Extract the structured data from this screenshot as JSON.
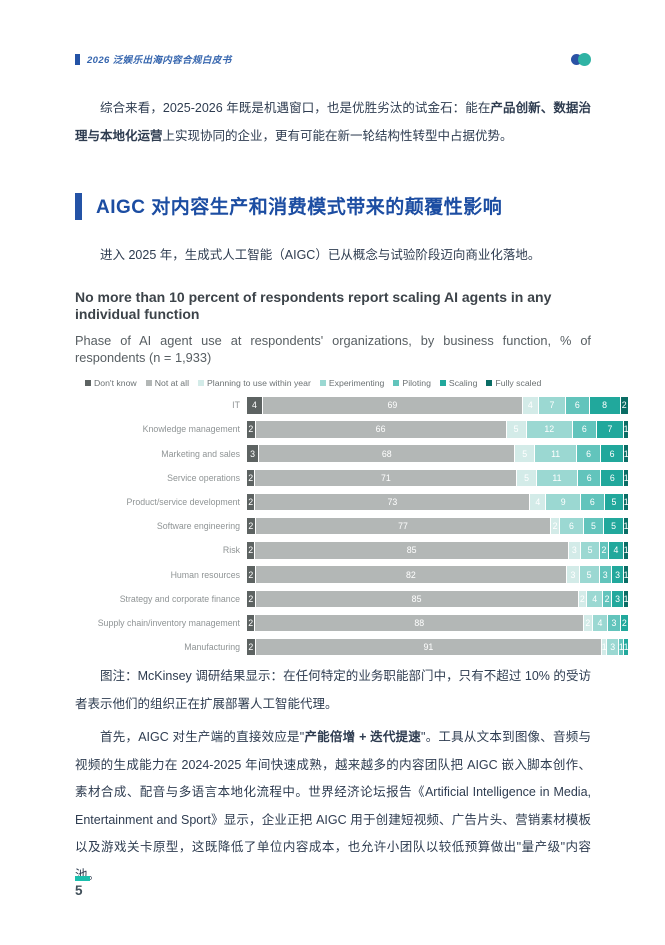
{
  "header": {
    "doc_title": "2026 泛娱乐出海内容合规白皮书"
  },
  "intro_paragraph": {
    "part1": "综合来看，2025-2026 年既是机遇窗口，也是优胜劣汰的试金石：能在",
    "bold": "产品创新、数据治理与本地化运营",
    "part2": "上实现协同的企业，更有可能在新一轮结构性转型中占据优势。"
  },
  "section": {
    "heading": "AIGC 对内容生产和消费模式带来的颠覆性影响",
    "lead": "进入 2025 年，生成式人工智能（AIGC）已从概念与试验阶段迈向商业化落地。"
  },
  "chart_data": {
    "type": "bar",
    "orientation": "horizontal-stacked",
    "title": "No more than 10 percent of respondents report scaling AI agents in any individual function",
    "subtitle": "Phase of AI agent use at respondents' organizations, by business function, % of respondents (n = 1,933)",
    "xlim": [
      0,
      100
    ],
    "legend_position": "top",
    "value_labels": "white numerals inside segments",
    "categories": [
      "IT",
      "Knowledge management",
      "Marketing and sales",
      "Service operations",
      "Product/service development",
      "Software engineering",
      "Risk",
      "Human resources",
      "Strategy and corporate finance",
      "Supply chain/inventory management",
      "Manufacturing"
    ],
    "series": [
      {
        "name": "Don't know",
        "color": "#5d6362",
        "values": [
          4,
          2,
          3,
          2,
          2,
          2,
          2,
          2,
          2,
          2,
          2
        ]
      },
      {
        "name": "Not at all",
        "color": "#b3b7b6",
        "values": [
          69,
          66,
          68,
          71,
          73,
          77,
          85,
          82,
          85,
          88,
          91
        ]
      },
      {
        "name": "Planning to use within year",
        "color": "#d3ebe8",
        "values": [
          4,
          5,
          5,
          5,
          4,
          2,
          3,
          3,
          2,
          2,
          1
        ]
      },
      {
        "name": "Experimenting",
        "color": "#9bd8d2",
        "values": [
          7,
          12,
          11,
          11,
          9,
          6,
          5,
          5,
          4,
          4,
          3
        ]
      },
      {
        "name": "Piloting",
        "color": "#62c4bc",
        "values": [
          6,
          6,
          6,
          6,
          6,
          5,
          2,
          3,
          2,
          3,
          1
        ]
      },
      {
        "name": "Scaling",
        "color": "#21a89c",
        "values": [
          8,
          7,
          6,
          6,
          5,
          5,
          4,
          3,
          3,
          2,
          1
        ]
      },
      {
        "name": "Fully scaled",
        "color": "#0a6d65",
        "values": [
          2,
          1,
          1,
          1,
          1,
          1,
          1,
          1,
          1,
          0,
          0
        ]
      }
    ]
  },
  "figure_note": {
    "text": "图注：McKinsey 调研结果显示：在任何特定的业务职能部门中，只有不超过 10% 的受访者表示他们的组织正在扩展部署人工智能代理。"
  },
  "body_paragraph": {
    "part1": "首先，AIGC 对生产端的直接效应是\"",
    "bold": "产能倍增 + 迭代提速",
    "part2": "\"。工具从文本到图像、音频与视频的生成能力在 2024-2025 年间快速成熟，越来越多的内容团队把 AIGC 嵌入脚本创作、素材合成、配音与多语言本地化流程中。世界经济论坛报告《Artificial Intelligence in Media, Entertainment and Sport》显示，企业正把 AIGC 用于创建短视频、广告片头、营销素材模板以及游戏关卡原型，这既降低了单位内容成本，也允许小团队以较低预算做出\"量产级\"内容池。"
  },
  "footer": {
    "page_number": "5"
  }
}
